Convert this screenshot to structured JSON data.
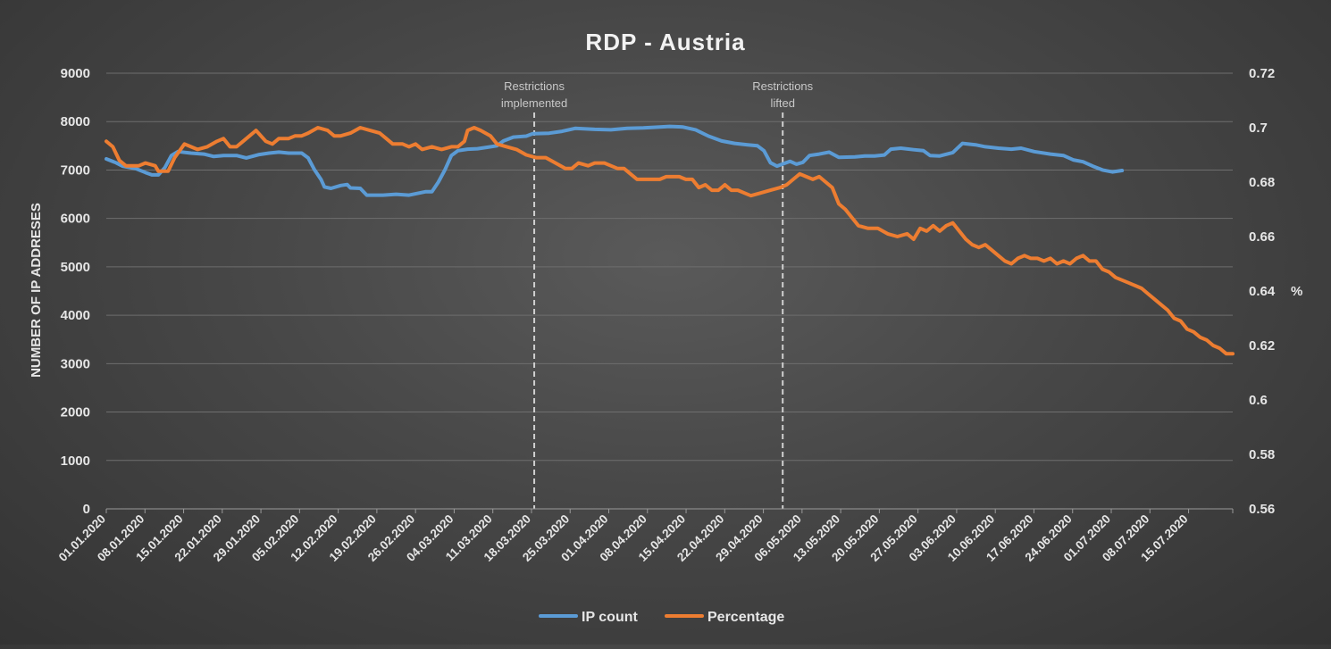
{
  "chart_data": {
    "type": "line",
    "title": "RDP - Austria",
    "ylabel": "NUMBER OF IP ADDRESES",
    "y2label": "%",
    "ylim": [
      0,
      9000
    ],
    "y2lim": [
      0.56,
      0.72
    ],
    "yticks": [
      "0",
      "1000",
      "2000",
      "3000",
      "4000",
      "5000",
      "6000",
      "7000",
      "8000",
      "9000"
    ],
    "y2ticks": [
      "0.56",
      "0.58",
      "0.6",
      "0.62",
      "0.64",
      "0.66",
      "0.68",
      "0.7",
      "0.72"
    ],
    "xlabels": [
      "01.01.2020",
      "08.01.2020",
      "15.01.2020",
      "22.01.2020",
      "29.01.2020",
      "05.02.2020",
      "12.02.2020",
      "19.02.2020",
      "26.02.2020",
      "04.03.2020",
      "11.03.2020",
      "18.03.2020",
      "25.03.2020",
      "01.04.2020",
      "08.04.2020",
      "15.04.2020",
      "22.04.2020",
      "29.04.2020",
      "06.05.2020",
      "13.05.2020",
      "20.05.2020",
      "27.05.2020",
      "03.06.2020",
      "10.06.2020",
      "17.06.2020",
      "24.06.2020",
      "01.07.2020",
      "08.07.2020",
      "15.07.2020"
    ],
    "num_days": 204,
    "annotations": [
      {
        "day": 77.5,
        "line1": "Restrictions",
        "line2": "implemented"
      },
      {
        "day": 122.5,
        "line1": "Restrictions",
        "line2": "lifted"
      }
    ],
    "series": [
      {
        "name": "IP count",
        "axis": "left",
        "color": "#5b9bd5",
        "points": [
          [
            0,
            7230
          ],
          [
            3,
            7150
          ],
          [
            5,
            7080
          ],
          [
            9,
            7030
          ],
          [
            12,
            6950
          ],
          [
            14,
            6900
          ],
          [
            16,
            6900
          ],
          [
            18,
            7050
          ],
          [
            20,
            7300
          ],
          [
            22,
            7380
          ],
          [
            26,
            7350
          ],
          [
            30,
            7330
          ],
          [
            33,
            7280
          ],
          [
            36,
            7300
          ],
          [
            40,
            7300
          ],
          [
            43,
            7250
          ],
          [
            47,
            7320
          ],
          [
            50,
            7350
          ],
          [
            53,
            7370
          ],
          [
            56,
            7350
          ],
          [
            60,
            7350
          ],
          [
            62,
            7250
          ],
          [
            64,
            7000
          ],
          [
            66,
            6800
          ],
          [
            67,
            6650
          ],
          [
            69,
            6620
          ],
          [
            72,
            6680
          ],
          [
            74,
            6700
          ],
          [
            75,
            6630
          ],
          [
            78,
            6620
          ],
          [
            80,
            6480
          ],
          [
            85,
            6480
          ],
          [
            89,
            6500
          ],
          [
            93,
            6480
          ],
          [
            98,
            6550
          ],
          [
            100,
            6550
          ],
          [
            102,
            6750
          ],
          [
            104,
            7000
          ],
          [
            106,
            7300
          ],
          [
            108,
            7400
          ],
          [
            111,
            7430
          ],
          [
            114,
            7440
          ],
          [
            117,
            7470
          ],
          [
            120,
            7500
          ],
          [
            122,
            7600
          ],
          [
            125,
            7680
          ],
          [
            129,
            7700
          ],
          [
            131,
            7750
          ],
          [
            136,
            7760
          ],
          [
            140,
            7800
          ],
          [
            144,
            7860
          ],
          [
            150,
            7840
          ],
          [
            155,
            7830
          ],
          [
            160,
            7860
          ],
          [
            165,
            7870
          ],
          [
            170,
            7890
          ],
          [
            173,
            7900
          ],
          [
            177,
            7890
          ],
          [
            181,
            7830
          ],
          [
            185,
            7700
          ],
          [
            189,
            7600
          ],
          [
            193,
            7550
          ],
          [
            197,
            7520
          ],
          [
            200,
            7500
          ],
          [
            202,
            7400
          ],
          [
            204,
            7150
          ],
          [
            206,
            7080
          ],
          [
            208,
            7130
          ],
          [
            210,
            7180
          ],
          [
            212,
            7120
          ],
          [
            214,
            7160
          ],
          [
            216,
            7300
          ],
          [
            219,
            7330
          ],
          [
            222,
            7370
          ],
          [
            225,
            7260
          ],
          [
            230,
            7270
          ],
          [
            233,
            7290
          ],
          [
            236,
            7290
          ],
          [
            239,
            7310
          ],
          [
            241,
            7430
          ],
          [
            244,
            7450
          ],
          [
            248,
            7420
          ],
          [
            251,
            7400
          ],
          [
            253,
            7300
          ],
          [
            256,
            7290
          ],
          [
            260,
            7360
          ],
          [
            263,
            7550
          ],
          [
            267,
            7520
          ],
          [
            270,
            7480
          ],
          [
            274,
            7450
          ],
          [
            278,
            7430
          ],
          [
            281,
            7450
          ],
          [
            285,
            7380
          ],
          [
            290,
            7330
          ],
          [
            294,
            7300
          ],
          [
            297,
            7210
          ],
          [
            300,
            7170
          ],
          [
            303,
            7080
          ],
          [
            306,
            7000
          ],
          [
            309,
            6960
          ],
          [
            312,
            6990
          ]
        ]
      },
      {
        "name": "Percentage",
        "axis": "right",
        "color": "#ed7d31",
        "points": [
          [
            0,
            0.695
          ],
          [
            2,
            0.693
          ],
          [
            4,
            0.688
          ],
          [
            6,
            0.686
          ],
          [
            10,
            0.686
          ],
          [
            12,
            0.687
          ],
          [
            15,
            0.686
          ],
          [
            16,
            0.684
          ],
          [
            19,
            0.684
          ],
          [
            21,
            0.689
          ],
          [
            24,
            0.694
          ],
          [
            26,
            0.693
          ],
          [
            28,
            0.692
          ],
          [
            31,
            0.693
          ],
          [
            34,
            0.695
          ],
          [
            36,
            0.696
          ],
          [
            38,
            0.693
          ],
          [
            40,
            0.693
          ],
          [
            42,
            0.695
          ],
          [
            44,
            0.697
          ],
          [
            46,
            0.699
          ],
          [
            49,
            0.695
          ],
          [
            51,
            0.694
          ],
          [
            53,
            0.696
          ],
          [
            56,
            0.696
          ],
          [
            58,
            0.697
          ],
          [
            60,
            0.697
          ],
          [
            62,
            0.698
          ],
          [
            65,
            0.7
          ],
          [
            68,
            0.699
          ],
          [
            70,
            0.697
          ],
          [
            72,
            0.697
          ],
          [
            75,
            0.698
          ],
          [
            78,
            0.7
          ],
          [
            81,
            0.699
          ],
          [
            84,
            0.698
          ],
          [
            86,
            0.696
          ],
          [
            88,
            0.694
          ],
          [
            91,
            0.694
          ],
          [
            93,
            0.693
          ],
          [
            95,
            0.694
          ],
          [
            97,
            0.692
          ],
          [
            100,
            0.693
          ],
          [
            103,
            0.692
          ],
          [
            106,
            0.693
          ],
          [
            108,
            0.693
          ],
          [
            110,
            0.695
          ],
          [
            111,
            0.699
          ],
          [
            113,
            0.7
          ],
          [
            115,
            0.699
          ],
          [
            118,
            0.697
          ],
          [
            120,
            0.694
          ],
          [
            123,
            0.693
          ],
          [
            126,
            0.692
          ],
          [
            129,
            0.69
          ],
          [
            132,
            0.689
          ],
          [
            135,
            0.689
          ],
          [
            138,
            0.687
          ],
          [
            141,
            0.685
          ],
          [
            143,
            0.685
          ],
          [
            145,
            0.687
          ],
          [
            148,
            0.686
          ],
          [
            150,
            0.687
          ],
          [
            153,
            0.687
          ],
          [
            155,
            0.686
          ],
          [
            157,
            0.685
          ],
          [
            159,
            0.685
          ],
          [
            161,
            0.683
          ],
          [
            163,
            0.681
          ],
          [
            166,
            0.681
          ],
          [
            170,
            0.681
          ],
          [
            172,
            0.682
          ],
          [
            176,
            0.682
          ],
          [
            178,
            0.681
          ],
          [
            180,
            0.681
          ],
          [
            182,
            0.678
          ],
          [
            184,
            0.679
          ],
          [
            186,
            0.677
          ],
          [
            188,
            0.677
          ],
          [
            190,
            0.679
          ],
          [
            192,
            0.677
          ],
          [
            194,
            0.677
          ],
          [
            196,
            0.676
          ],
          [
            198,
            0.675
          ],
          [
            201,
            0.676
          ],
          [
            204,
            0.677
          ],
          [
            207,
            0.678
          ],
          [
            209,
            0.679
          ],
          [
            211,
            0.681
          ],
          [
            213,
            0.683
          ],
          [
            215,
            0.682
          ],
          [
            217,
            0.681
          ],
          [
            219,
            0.682
          ],
          [
            221,
            0.68
          ],
          [
            223,
            0.678
          ],
          [
            225,
            0.672
          ],
          [
            227,
            0.67
          ],
          [
            229,
            0.667
          ],
          [
            231,
            0.664
          ],
          [
            234,
            0.663
          ],
          [
            237,
            0.663
          ],
          [
            240,
            0.661
          ],
          [
            243,
            0.66
          ],
          [
            246,
            0.661
          ],
          [
            248,
            0.659
          ],
          [
            250,
            0.663
          ],
          [
            252,
            0.662
          ],
          [
            254,
            0.664
          ],
          [
            256,
            0.662
          ],
          [
            258,
            0.664
          ],
          [
            260,
            0.665
          ],
          [
            262,
            0.662
          ],
          [
            264,
            0.659
          ],
          [
            266,
            0.657
          ],
          [
            268,
            0.656
          ],
          [
            270,
            0.657
          ],
          [
            272,
            0.655
          ],
          [
            274,
            0.653
          ],
          [
            276,
            0.651
          ],
          [
            278,
            0.65
          ],
          [
            280,
            0.652
          ],
          [
            282,
            0.653
          ],
          [
            284,
            0.652
          ],
          [
            286,
            0.652
          ],
          [
            288,
            0.651
          ],
          [
            290,
            0.652
          ],
          [
            292,
            0.65
          ],
          [
            294,
            0.651
          ],
          [
            296,
            0.65
          ],
          [
            298,
            0.652
          ],
          [
            300,
            0.653
          ],
          [
            302,
            0.651
          ],
          [
            304,
            0.651
          ],
          [
            306,
            0.648
          ],
          [
            308,
            0.647
          ],
          [
            310,
            0.645
          ],
          [
            312,
            0.644
          ],
          [
            314,
            0.643
          ],
          [
            316,
            0.642
          ],
          [
            318,
            0.641
          ],
          [
            320,
            0.639
          ],
          [
            322,
            0.637
          ],
          [
            324,
            0.635
          ],
          [
            326,
            0.633
          ],
          [
            328,
            0.63
          ],
          [
            330,
            0.629
          ],
          [
            332,
            0.626
          ],
          [
            334,
            0.625
          ],
          [
            336,
            0.623
          ],
          [
            338,
            0.622
          ],
          [
            340,
            0.62
          ],
          [
            342,
            0.619
          ],
          [
            344,
            0.617
          ],
          [
            346,
            0.617
          ]
        ]
      }
    ],
    "legend": [
      "IP count",
      "Percentage"
    ],
    "legend_position": "bottom-center",
    "grid": true
  }
}
